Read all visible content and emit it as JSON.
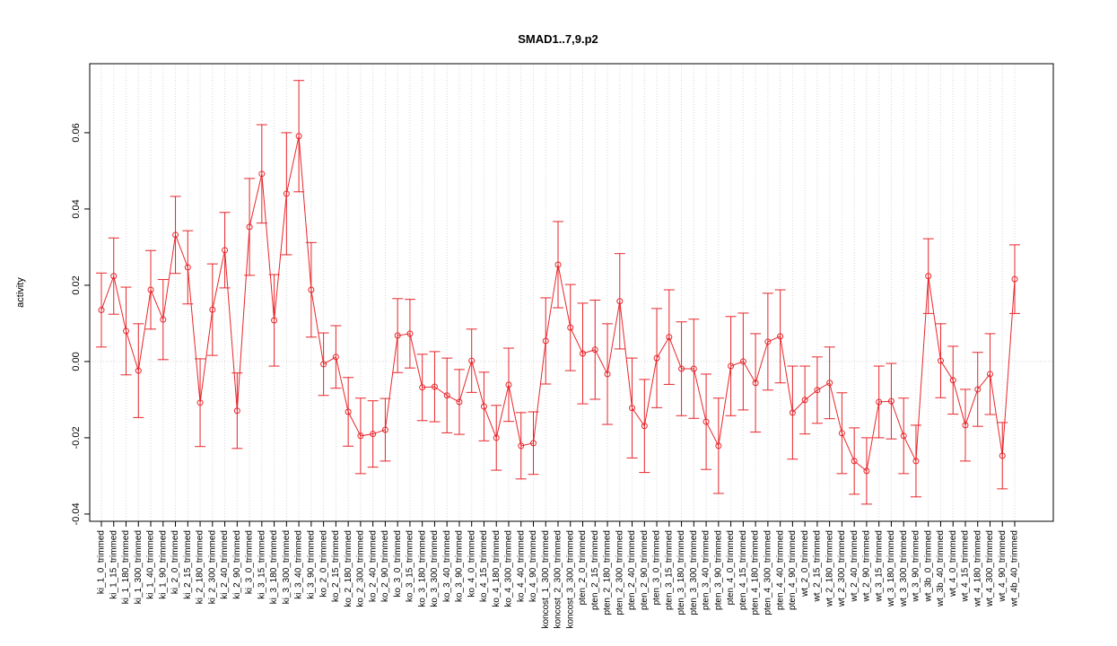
{
  "chart_data": {
    "type": "line",
    "title": "SMAD1..7,9.p2",
    "ylabel": "activity",
    "categories": [
      "ki_1_0_trimmed",
      "ki_1_15_trimmed",
      "ki_1_180_trimmed",
      "ki_1_300_trimmed",
      "ki_1_40_trimmed",
      "ki_1_90_trimmed",
      "ki_2_0_trimmed",
      "ki_2_15_trimmed",
      "ki_2_180_trimmed",
      "ki_2_300_trimmed",
      "ki_2_40_trimmed",
      "ki_2_90_trimmed",
      "ki_3_0_trimmed",
      "ki_3_15_trimmed",
      "ki_3_180_trimmed",
      "ki_3_300_trimmed",
      "ki_3_40_trimmed",
      "ki_3_90_trimmed",
      "ko_2_0_trimmed",
      "ko_2_15_trimmed",
      "ko_2_180_trimmed",
      "ko_2_300_trimmed",
      "ko_2_40_trimmed",
      "ko_2_90_trimmed",
      "ko_3_0_trimmed",
      "ko_3_15_trimmed",
      "ko_3_180_trimmed",
      "ko_3_300_trimmed",
      "ko_3_40_trimmed",
      "ko_3_90_trimmed",
      "ko_4_0_trimmed",
      "ko_4_15_trimmed",
      "ko_4_180_trimmed",
      "ko_4_300_trimmed",
      "ko_4_40_trimmed",
      "ko_4_90_trimmed",
      "koncost_1_300_trimmed",
      "koncost_2_300_trimmed",
      "koncost_3_300_trimmed",
      "pten_2_0_trimmed",
      "pten_2_15_trimmed",
      "pten_2_180_trimmed",
      "pten_2_300_trimmed",
      "pten_2_40_trimmed",
      "pten_2_90_trimmed",
      "pten_3_0_trimmed",
      "pten_3_15_trimmed",
      "pten_3_180_trimmed",
      "pten_3_300_trimmed",
      "pten_3_40_trimmed",
      "pten_3_90_trimmed",
      "pten_4_0_trimmed",
      "pten_4_15_trimmed",
      "pten_4_180_trimmed",
      "pten_4_300_trimmed",
      "pten_4_40_trimmed",
      "pten_4_90_trimmed",
      "wt_2_0_trimmed",
      "wt_2_15_trimmed",
      "wt_2_180_trimmed",
      "wt_2_300_trimmed",
      "wt_2_40_trimmed",
      "wt_2_90_trimmed",
      "wt_3_15_trimmed",
      "wt_3_180_trimmed",
      "wt_3_300_trimmed",
      "wt_3_90_trimmed",
      "wt_3b_0_trimmed",
      "wt_3b_40_trimmed",
      "wt_4_0_trimmed",
      "wt_4_15_trimmed",
      "wt_4_180_trimmed",
      "wt_4_300_trimmed",
      "wt_4_90_trimmed",
      "wt_4b_40_trimmed"
    ],
    "series": [
      {
        "color": "#e8262b",
        "values": [
          0.0135,
          0.0224,
          0.008,
          -0.0024,
          0.0188,
          0.011,
          0.0332,
          0.0247,
          -0.0108,
          0.0136,
          0.0292,
          -0.0129,
          0.0353,
          0.0492,
          0.0108,
          0.044,
          0.0591,
          0.0188,
          -0.0007,
          0.0012,
          -0.0132,
          -0.0195,
          -0.019,
          -0.0179,
          0.0068,
          0.0073,
          -0.0068,
          -0.0066,
          -0.0089,
          -0.0106,
          0.0002,
          -0.0118,
          -0.02,
          -0.0061,
          -0.0221,
          -0.0214,
          0.0054,
          0.0254,
          0.0089,
          0.0021,
          0.0031,
          -0.0033,
          0.0158,
          -0.0122,
          -0.0169,
          0.0009,
          0.0064,
          -0.0019,
          -0.0019,
          -0.0158,
          -0.0221,
          -0.0012,
          0.0,
          -0.0056,
          0.0052,
          0.0066,
          -0.0134,
          -0.0101,
          -0.0075,
          -0.0056,
          -0.0188,
          -0.0261,
          -0.0287,
          -0.0106,
          -0.0104,
          -0.0195,
          -0.0261,
          0.0224,
          0.0002,
          -0.0049,
          -0.0167,
          -0.0073,
          -0.0033,
          -0.0247,
          0.0216
        ],
        "errors": [
          0.0097,
          0.01,
          0.0115,
          0.0123,
          0.0103,
          0.0105,
          0.0101,
          0.0096,
          0.0115,
          0.012,
          0.0099,
          0.0099,
          0.0127,
          0.0129,
          0.012,
          0.016,
          0.0146,
          0.0124,
          0.0082,
          0.0082,
          0.009,
          0.0099,
          0.0087,
          0.0082,
          0.0097,
          0.009,
          0.0087,
          0.0092,
          0.0098,
          0.0085,
          0.0083,
          0.009,
          0.0085,
          0.0096,
          0.0087,
          0.0082,
          0.0113,
          0.0113,
          0.0113,
          0.0132,
          0.013,
          0.0132,
          0.0125,
          0.0131,
          0.0122,
          0.013,
          0.0124,
          0.0123,
          0.013,
          0.0125,
          0.0125,
          0.013,
          0.0127,
          0.0129,
          0.0127,
          0.0122,
          0.0122,
          0.0089,
          0.0087,
          0.0094,
          0.0106,
          0.0087,
          0.0087,
          0.0094,
          0.0099,
          0.0099,
          0.0094,
          0.0098,
          0.0097,
          0.0089,
          0.0094,
          0.0097,
          0.0106,
          0.0087,
          0.009
        ]
      }
    ],
    "ylim": [
      -0.0419,
      0.0781
    ],
    "yticks": [
      -0.04,
      -0.02,
      {
        "value": 0,
        "label": "0.00"
      },
      0.02,
      0.04,
      0.06
    ],
    "grid": true
  }
}
